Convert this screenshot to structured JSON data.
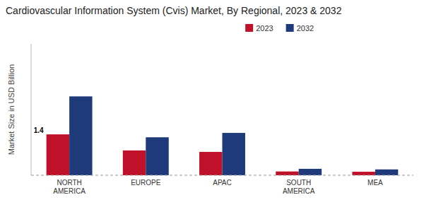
{
  "chart_data": {
    "type": "bar",
    "title": "Cardiovascular Information System (Cvis) Market, By Regional, 2023 & 2032",
    "ylabel": "Market Size in USD Billion",
    "categories": [
      "NORTH\nAMERICA",
      "EUROPE",
      "APAC",
      "SOUTH\nAMERICA",
      "MEA"
    ],
    "series": [
      {
        "name": "2023",
        "color": "#c0112a",
        "values": [
          1.4,
          0.85,
          0.8,
          0.13,
          0.12
        ]
      },
      {
        "name": "2032",
        "color": "#1f3a7a",
        "values": [
          2.7,
          1.3,
          1.45,
          0.22,
          0.2
        ]
      }
    ],
    "annotations": [
      {
        "text": "1.4",
        "x": "NORTH\nAMERICA",
        "y": 1.4
      }
    ],
    "ylim": [
      0,
      4.5
    ],
    "yticks": [],
    "grid": false,
    "legend": "top",
    "tick_labels": "x"
  }
}
